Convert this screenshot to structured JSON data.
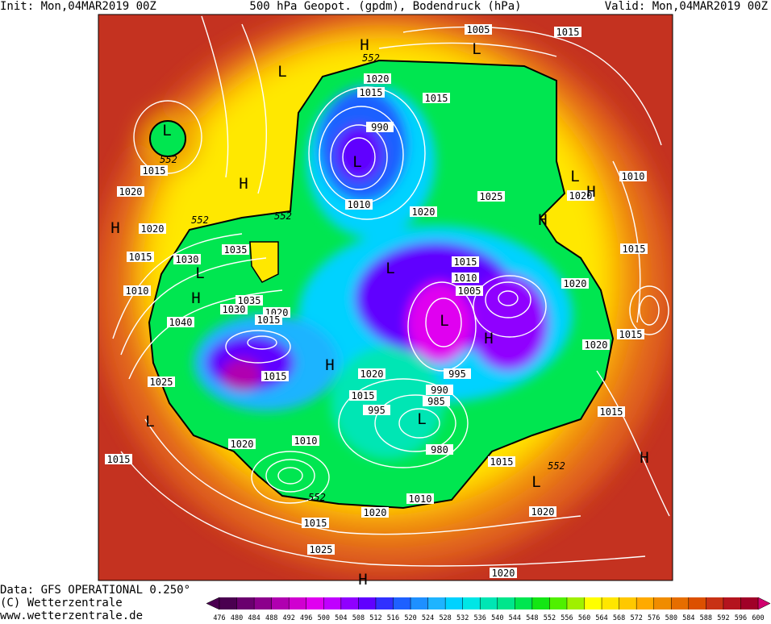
{
  "header": {
    "init": "Init: Mon,04MAR2019 00Z",
    "title": "500 hPa Geopot. (gpdm), Bodendruck (hPa)",
    "valid": "Valid: Mon,04MAR2019 00Z"
  },
  "footer": {
    "data": "Data: GFS OPERATIONAL 0.250°",
    "copyright": "(C) Wetterzentrale",
    "url": "www.wetterzentrale.de"
  },
  "colorbar": {
    "ticks": [
      476,
      480,
      484,
      488,
      492,
      496,
      500,
      504,
      508,
      512,
      516,
      520,
      524,
      528,
      532,
      536,
      540,
      544,
      548,
      552,
      556,
      560,
      564,
      568,
      572,
      576,
      580,
      584,
      588,
      592,
      596,
      600
    ],
    "colors": [
      "#4a0050",
      "#6a006e",
      "#8c008c",
      "#b000b0",
      "#d000d0",
      "#e000f0",
      "#c000ff",
      "#9000ff",
      "#6000ff",
      "#3030ff",
      "#1e60ff",
      "#1e90ff",
      "#1eb4ff",
      "#00d2ff",
      "#00e6e6",
      "#00e6b4",
      "#00e68c",
      "#00e650",
      "#14e614",
      "#50f000",
      "#a0f000",
      "#ffff00",
      "#ffe600",
      "#ffc800",
      "#ffaa00",
      "#f08c00",
      "#e66e00",
      "#dc5000",
      "#c83214",
      "#b4141e",
      "#a00028"
    ],
    "low_color": "#4a0050",
    "high_color": "#d0006e"
  },
  "map": {
    "isobar_labels": [
      1005,
      1015,
      1020,
      1015,
      1015,
      990,
      1015,
      1020,
      1010,
      1020,
      1025,
      1010,
      1020,
      1020,
      1035,
      1030,
      1015,
      1010,
      1015,
      1010,
      1005,
      1020,
      1015,
      1035,
      1030,
      1020,
      1015,
      1040,
      1015,
      1020,
      1015,
      1020,
      1025,
      995,
      990,
      985,
      1015,
      995,
      1015,
      1020,
      1010,
      980,
      1015,
      1015,
      1010,
      1020,
      1020,
      1015,
      1025,
      1020
    ],
    "geopotential_labels": [
      552,
      552,
      552,
      552,
      552,
      552
    ],
    "pressure_centers": [
      "H",
      "L",
      "L",
      "L",
      "H",
      "L",
      "L",
      "H",
      "H",
      "H",
      "L",
      "L",
      "H",
      "L",
      "H",
      "H",
      "L",
      "L",
      "H",
      "L",
      "H"
    ]
  }
}
